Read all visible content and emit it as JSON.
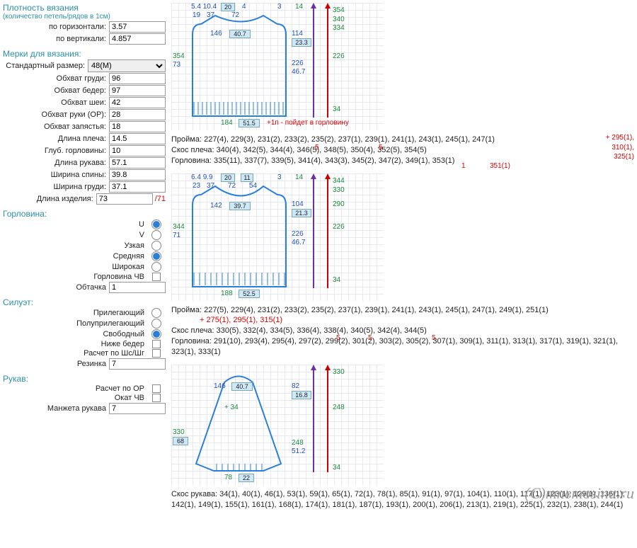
{
  "density": {
    "title": "Плотность вязания",
    "subtitle": "(количество петель/рядов в 1см)",
    "h_label": "по горизонтали:",
    "h_val": "3.57",
    "v_label": "по вертикали:",
    "v_val": "4.857"
  },
  "measurements": {
    "title": "Мерки для вязания:",
    "size_label": "Стандартный размер:",
    "size_val": "48(M)",
    "items": [
      {
        "l": "Обхват груди:",
        "v": "96"
      },
      {
        "l": "Обхват бедер:",
        "v": "97"
      },
      {
        "l": "Обхват шеи:",
        "v": "42"
      },
      {
        "l": "Обхват руки (ОР):",
        "v": "28"
      },
      {
        "l": "Обхват запястья:",
        "v": "18"
      },
      {
        "l": "Длина плеча:",
        "v": "14.5"
      },
      {
        "l": "Глуб. горловины:",
        "v": "10"
      },
      {
        "l": "Длина рукава:",
        "v": "57.1"
      },
      {
        "l": "Ширина спины:",
        "v": "39.8"
      },
      {
        "l": "Ширина груди:",
        "v": "37.1"
      },
      {
        "l": "Длина изделия:",
        "v": "73"
      }
    ],
    "length_note": "/71"
  },
  "neckline": {
    "title": "Горловина:",
    "shape": [
      {
        "l": "U",
        "sel": true
      },
      {
        "l": "V",
        "sel": false
      }
    ],
    "width": [
      {
        "l": "Узкая",
        "sel": false
      },
      {
        "l": "Средняя",
        "sel": true
      },
      {
        "l": "Широкая",
        "sel": false
      }
    ],
    "chb_label": "Горловина ЧВ",
    "trim_label": "Обтачка",
    "trim_val": "1"
  },
  "silhouette": {
    "title": "Силуэт:",
    "opts": [
      {
        "l": "Прилегающий",
        "sel": false
      },
      {
        "l": "Полуприлегающий",
        "sel": false
      },
      {
        "l": "Свободный",
        "sel": true
      }
    ],
    "below_label": "Ниже бедер",
    "calc_label": "Расчет по Шс/Шг",
    "rib_label": "Резинка",
    "rib_val": "7"
  },
  "sleeve": {
    "title": "Рукав:",
    "calc_label": "Расчет по ОР",
    "okat_label": "Окат ЧВ",
    "cuff_label": "Манжета рукава",
    "cuff_val": "7"
  },
  "diag_colors": {
    "outline": "#2a7fd8",
    "grid": "#e8e8f0",
    "box": "#cfe8f8",
    "blue": "#2050c0",
    "green": "#1a8a3a",
    "red": "#d00",
    "purple": "#7030a0"
  },
  "diag1": {
    "top_blue": [
      "5.4",
      "10.4",
      "19",
      "37",
      "72",
      "4",
      "3",
      "14"
    ],
    "top_box": "20",
    "mid": {
      "w": "146",
      "wbox": "40.7"
    },
    "right_green": [
      "354",
      "340",
      "334",
      "226",
      "34"
    ],
    "right_blue": {
      "r1": "114",
      "r1box": "23.3",
      "r2": "226",
      "r3": "46.7"
    },
    "left_green": "354",
    "left_blue": "73",
    "bottom_green": "184",
    "bottom_box": "51.5",
    "note": "+1п - пойдет в горловину"
  },
  "text1": {
    "armhole": "Пройма: 227(4), 229(3), 231(2), 233(2), 235(2), 237(1), 239(1), 241(1), 243(1), 245(1), 247(1)",
    "shoulder": "Скос плеча: 340(4), 342(5), 344(4), 346(5), 348(5), 350(4), 352(5), 354(5)",
    "shoulder_sup": [
      "5",
      "5"
    ],
    "neck": "Горловина: 335(11), 337(7), 339(5), 341(4), 343(3), 345(2), 347(2), 349(1), 353(1)",
    "neck_note1": "1",
    "neck_note2": "351(1)",
    "side": "+ 295(1),\n310(1),\n325(1)"
  },
  "diag2": {
    "top_blue": [
      "6.4",
      "9.9",
      "23",
      "37",
      "72",
      "54",
      "3",
      "14"
    ],
    "top_box1": "20",
    "top_box2": "11",
    "mid": {
      "w": "142",
      "wbox": "39.7"
    },
    "right_green": [
      "344",
      "330",
      "290",
      "226",
      "34"
    ],
    "right_blue": {
      "r1": "104",
      "r1box": "21.3",
      "r2": "226",
      "r3": "46.7"
    },
    "left_green": "344",
    "left_blue": "71",
    "bottom_green": "188",
    "bottom_box": "52.5"
  },
  "text2": {
    "armhole": "Пройма: 227(5), 229(4), 231(2), 233(2), 235(2), 237(1), 239(1), 241(1), 243(1), 245(1), 247(1), 249(1), 251(1)",
    "armhole_note": "+ 275(1), 295(1), 315(1)",
    "shoulder": "Скос плеча: 330(5), 332(4), 334(5), 336(4), 338(4), 340(5), 342(4), 344(5)",
    "shoulder_sup": [
      "5",
      "5",
      "5"
    ],
    "neck": "Горловина: 291(10), 293(4), 295(4), 297(2), 299(2), 301(2), 303(2), 305(2), 307(1), 309(1), 311(1), 313(1), 317(1), 319(1), 321(1), 323(1), 333(1)"
  },
  "diag3": {
    "mid": {
      "w": "146",
      "wbox": "40.7",
      "plus": "+ 34"
    },
    "right_green": [
      "330",
      "248",
      "34"
    ],
    "right_blue": {
      "r1": "82",
      "r1box": "16.8",
      "r2": "248",
      "r3": "51.2"
    },
    "left_green": "330",
    "left_blue": "68",
    "bottom_green": "78",
    "bottom_box": "22"
  },
  "text3": {
    "bevel": "Скос рукава: 34(1), 40(1), 46(1), 53(1), 59(1), 65(1), 72(1), 78(1), 85(1), 91(1), 97(1), 104(1), 110(1), 117(1), 123(1), 129(1), 136(1), 142(1), 149(1), 155(1), 161(1), 168(1), 174(1), 181(1), 187(1), 193(1), 200(1), 206(1), 213(1), 219(1), 225(1), 232(1), 238(1), 244(1)"
  },
  "watermark": "(C)mnemosina.ru"
}
